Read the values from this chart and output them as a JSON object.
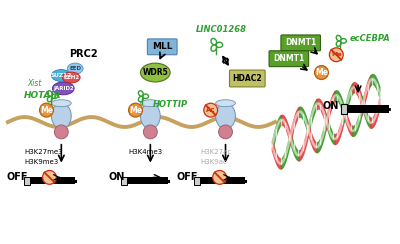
{
  "bg_color": "#ffffff",
  "chromatin_color": "#c8a060",
  "nucleosome_body_color": "#b8d0e8",
  "nucleosome_outline": "#7090b0",
  "nucleosome_base_color": "#d08090",
  "me_ball_color": "#e8943a",
  "me_text_color": "#ffffff",
  "prc2_label": "PRC2",
  "mll_label": "MLL",
  "wdr5_label": "WDR5",
  "hdac2_label": "HDAC2",
  "linc_label": "LINC01268",
  "dnmt1_label": "DNMT1",
  "eccebpa_label": "ecCEBPA",
  "xist_label": "Xist",
  "hotair_label": "HOTAIR",
  "hottip_label": "HOTTIP",
  "h3k27me3_label": "H3K27me3",
  "h3k9me3_label": "H3K9me3",
  "h3k4me3_label": "H3K4me3",
  "h3k27ac_label": "H3K27ac",
  "h3k9ac_label": "H3K9ac",
  "off_label": "OFF",
  "on_label": "ON",
  "suz12_color": "#4bafd6",
  "eed_color": "#90c8f0",
  "ezh2_color": "#e05050",
  "jarid2_color": "#8050c0",
  "wdr5_color": "#90c040",
  "mll_color": "#80b0d8",
  "hdac2_color": "#b8b870",
  "dnmt1_color": "#58a028",
  "dna_green": "#3a9828",
  "dna_red": "#e04040",
  "ac_ball_color": "#e8943a"
}
